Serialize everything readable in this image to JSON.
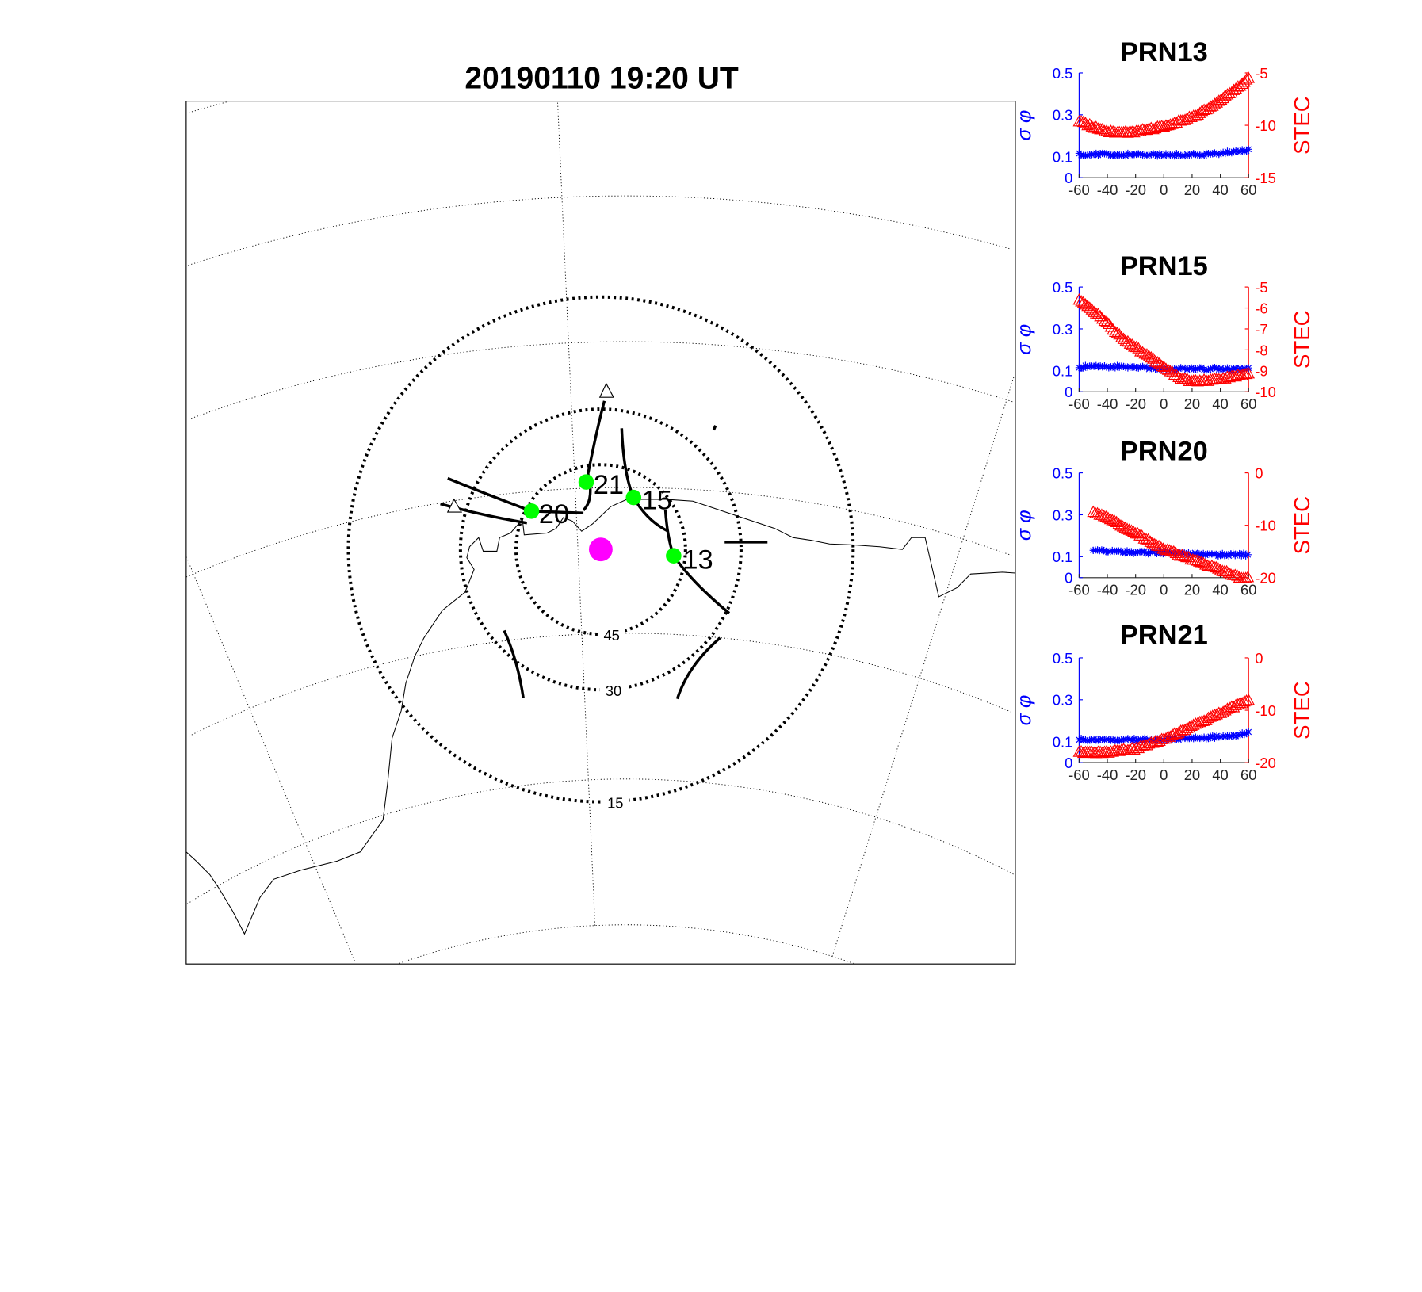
{
  "map": {
    "title": "20190110 19:20 UT",
    "elevation_labels": [
      "45",
      "30",
      "15"
    ],
    "satellites": [
      {
        "prn": "21",
        "color": "#00ff00"
      },
      {
        "prn": "15",
        "color": "#00ff00"
      },
      {
        "prn": "20",
        "color": "#00ff00"
      },
      {
        "prn": "13",
        "color": "#00ff00"
      }
    ],
    "station_color": "#ff00ff"
  },
  "colors": {
    "sigma": "#0000ff",
    "stec": "#ff0000"
  },
  "chart_data": [
    {
      "type": "scatter",
      "title": "PRN13",
      "ylabel_left": "σ φ",
      "ylabel_right": "STEC",
      "xlim": [
        -60,
        60
      ],
      "xticks": [
        "-60",
        "-40",
        "-20",
        "0",
        "20",
        "40",
        "60"
      ],
      "ylim_left": [
        0,
        0.5
      ],
      "yticks_left": [
        "0",
        "0.1",
        "0.3",
        "0.5"
      ],
      "ylim_right": [
        -15,
        -5
      ],
      "yticks_right": [
        "-15",
        "-10",
        "-5"
      ],
      "sigma": {
        "x": [
          -60,
          -30,
          0,
          30,
          45,
          60
        ],
        "y": [
          0.11,
          0.11,
          0.11,
          0.11,
          0.12,
          0.13
        ]
      },
      "stec": {
        "x": [
          -60,
          -45,
          -35,
          -20,
          0,
          20,
          35,
          50,
          60
        ],
        "y": [
          -9.6,
          -10.4,
          -10.7,
          -10.6,
          -10.1,
          -9.2,
          -8.1,
          -6.6,
          -5.5
        ]
      }
    },
    {
      "type": "scatter",
      "title": "PRN15",
      "ylabel_left": "σ φ",
      "ylabel_right": "STEC",
      "xlim": [
        -60,
        60
      ],
      "xticks": [
        "-60",
        "-40",
        "-20",
        "0",
        "20",
        "40",
        "60"
      ],
      "ylim_left": [
        0,
        0.5
      ],
      "yticks_left": [
        "0",
        "0.1",
        "0.3",
        "0.5"
      ],
      "ylim_right": [
        -10,
        -5
      ],
      "yticks_right": [
        "-10",
        "-9",
        "-8",
        "-7",
        "-6",
        "-5"
      ],
      "sigma": {
        "x": [
          -60,
          -30,
          0,
          30,
          60
        ],
        "y": [
          0.12,
          0.12,
          0.11,
          0.11,
          0.11
        ]
      },
      "stec": {
        "x": [
          -60,
          -45,
          -30,
          -15,
          0,
          10,
          20,
          40,
          60
        ],
        "y": [
          -5.6,
          -6.4,
          -7.4,
          -8.1,
          -8.8,
          -9.3,
          -9.5,
          -9.4,
          -9.1
        ]
      }
    },
    {
      "type": "scatter",
      "title": "PRN20",
      "ylabel_left": "σ φ",
      "ylabel_right": "STEC",
      "xlim": [
        -60,
        60
      ],
      "xticks": [
        "-60",
        "-40",
        "-20",
        "0",
        "20",
        "40",
        "60"
      ],
      "ylim_left": [
        0,
        0.5
      ],
      "yticks_left": [
        "0",
        "0.1",
        "0.3",
        "0.5"
      ],
      "ylim_right": [
        -20,
        0
      ],
      "yticks_right": [
        "-20",
        "-10",
        "0"
      ],
      "sigma": {
        "x": [
          -50,
          -20,
          0,
          30,
          60
        ],
        "y": [
          0.13,
          0.12,
          0.12,
          0.11,
          0.11
        ]
      },
      "stec": {
        "x": [
          -50,
          -40,
          -20,
          0,
          20,
          40,
          55,
          60
        ],
        "y": [
          -7.5,
          -8.5,
          -11.5,
          -14.5,
          -16.5,
          -18.5,
          -20,
          -20
        ]
      }
    },
    {
      "type": "scatter",
      "title": "PRN21",
      "ylabel_left": "σ φ",
      "ylabel_right": "STEC",
      "xlim": [
        -60,
        60
      ],
      "xticks": [
        "-60",
        "-40",
        "-20",
        "0",
        "20",
        "40",
        "60"
      ],
      "ylim_left": [
        0,
        0.5
      ],
      "yticks_left": [
        "0",
        "0.1",
        "0.3",
        "0.5"
      ],
      "ylim_right": [
        -20,
        0
      ],
      "yticks_right": [
        "-20",
        "-10",
        "0"
      ],
      "sigma": {
        "x": [
          -60,
          -20,
          0,
          30,
          50,
          60
        ],
        "y": [
          0.11,
          0.11,
          0.11,
          0.12,
          0.13,
          0.14
        ]
      },
      "stec": {
        "x": [
          -60,
          -40,
          -20,
          0,
          20,
          40,
          60
        ],
        "y": [
          -18,
          -18,
          -17.3,
          -15.5,
          -13,
          -10.5,
          -8
        ]
      }
    }
  ]
}
